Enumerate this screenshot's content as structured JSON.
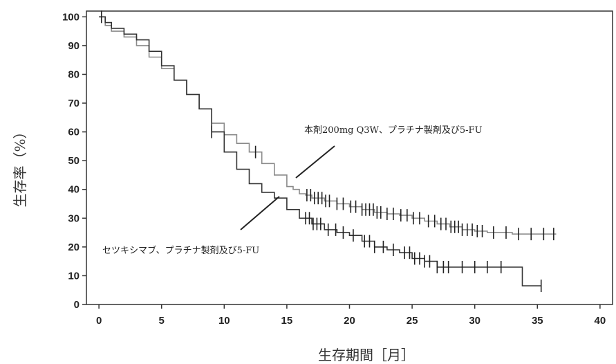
{
  "chart_data": {
    "type": "line",
    "subtype": "kaplan-meier",
    "title": "",
    "xlabel": "生存期間［月］",
    "ylabel": "生存率（%）",
    "xlim": [
      -1,
      41
    ],
    "ylim": [
      0,
      102
    ],
    "xticks": [
      0,
      5,
      10,
      15,
      20,
      25,
      30,
      35,
      40
    ],
    "yticks": [
      0,
      10,
      20,
      30,
      40,
      50,
      60,
      70,
      80,
      90,
      100
    ],
    "grid": false,
    "series": [
      {
        "name": "本剤200mg Q3W、プラチナ製剤及び5-FU",
        "color": "#8a8a8a",
        "x": [
          0,
          0.5,
          1,
          2,
          3,
          4,
          5,
          6,
          7,
          8,
          9,
          10,
          11,
          12,
          13,
          14,
          15,
          15.5,
          16,
          16.5,
          17,
          18,
          19,
          20,
          21,
          22,
          23,
          24,
          25,
          26,
          27,
          28,
          29,
          30,
          31,
          32,
          33,
          34,
          35,
          36.5
        ],
        "y": [
          100,
          97,
          95,
          93,
          90,
          86,
          82,
          78,
          73,
          68,
          63,
          59,
          56,
          53,
          49,
          45,
          41,
          40,
          38.5,
          38,
          37,
          36,
          35,
          34,
          33,
          32,
          31.5,
          31,
          30,
          29,
          28,
          27,
          26,
          25.5,
          25,
          25,
          24.5,
          24.5,
          24.5,
          24.5
        ],
        "censor_x": [
          12.5,
          16.6,
          16.9,
          17.2,
          17.5,
          17.8,
          18.1,
          18.4,
          19,
          19.5,
          20.1,
          20.5,
          21,
          21.3,
          21.6,
          21.9,
          22.2,
          22.5,
          23,
          23.5,
          24.1,
          24.6,
          25.1,
          25.6,
          26.3,
          26.8,
          27.3,
          27.7,
          28.1,
          28.4,
          28.7,
          29,
          29.4,
          29.8,
          30.2,
          30.6,
          31.5,
          32.5,
          33.5,
          34.5,
          35.5,
          36.3
        ]
      },
      {
        "name": "セツキシマブ、プラチナ製剤及び5-FU",
        "color": "#333333",
        "x": [
          0,
          0.5,
          1,
          2,
          3,
          4,
          5,
          6,
          7,
          8,
          9,
          10,
          11,
          12,
          13,
          14,
          15,
          16,
          17,
          18,
          19,
          20,
          21,
          22,
          23,
          24,
          25,
          26,
          27,
          28,
          29,
          30,
          31,
          32,
          33,
          33.8,
          34.5,
          35.3
        ],
        "y": [
          100,
          98,
          96,
          94,
          92,
          88,
          83,
          78,
          73,
          68,
          60,
          53,
          47,
          42,
          39,
          37,
          33,
          30,
          28,
          26,
          25,
          24,
          22,
          20,
          19,
          18,
          16,
          15,
          13,
          13,
          13,
          13,
          13,
          13,
          13,
          6.5,
          6.5,
          6.5
        ],
        "censor_x": [
          0.2,
          9,
          16.5,
          16.8,
          17.1,
          17.4,
          17.7,
          18.3,
          18.9,
          19.5,
          20.3,
          21.2,
          21.6,
          22,
          22.7,
          23.5,
          24.4,
          24.8,
          25.2,
          25.6,
          26,
          26.4,
          27,
          27.5,
          27.9,
          29,
          30,
          31,
          32.1,
          35.3
        ]
      }
    ],
    "annotations": [
      {
        "text": "本剤200mg Q3W、プラチナ製剤及び5-FU",
        "series": 0
      },
      {
        "text": "セツキシマブ、プラチナ製剤及び5-FU",
        "series": 1
      }
    ]
  }
}
